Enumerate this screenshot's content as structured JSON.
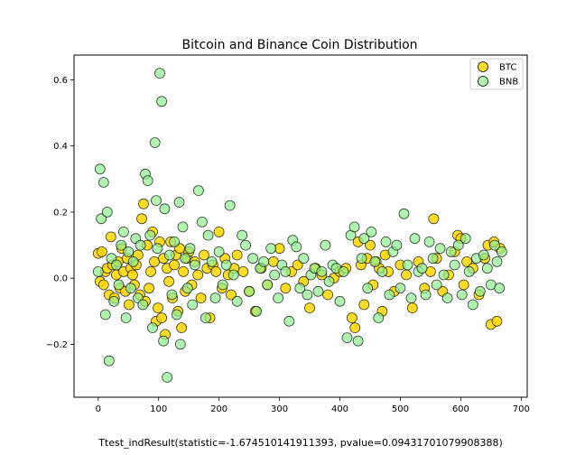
{
  "chart_data": {
    "type": "scatter",
    "title": "Bitcoin and Binance Coin Distribution",
    "xlabel": "",
    "ylabel": "",
    "xlim": [
      -40,
      710
    ],
    "ylim": [
      -0.36,
      0.675
    ],
    "xticks": [
      0,
      100,
      200,
      300,
      400,
      500,
      600,
      700
    ],
    "yticks": [
      -0.2,
      0.0,
      0.2,
      0.4,
      0.6
    ],
    "ytick_labels": [
      "−0.2",
      "0.0",
      "0.2",
      "0.4",
      "0.6"
    ],
    "grid": false,
    "legend_position": "top-right",
    "caption": "Ttest_indResult(statistic=-1.674510141911393, pvalue=0.09431701079908388)",
    "series": [
      {
        "name": "BTC",
        "color": "#ffd700",
        "edge_color": "#000000",
        "x": [
          0,
          3,
          6,
          9,
          12,
          15,
          18,
          21,
          24,
          27,
          30,
          33,
          36,
          39,
          42,
          45,
          48,
          51,
          54,
          57,
          60,
          63,
          66,
          69,
          72,
          75,
          78,
          81,
          84,
          87,
          90,
          93,
          96,
          99,
          102,
          105,
          108,
          111,
          114,
          117,
          120,
          123,
          126,
          129,
          132,
          135,
          138,
          141,
          144,
          147,
          150,
          155,
          160,
          165,
          170,
          175,
          180,
          185,
          190,
          195,
          200,
          205,
          210,
          215,
          220,
          225,
          230,
          240,
          250,
          260,
          270,
          280,
          290,
          300,
          310,
          320,
          330,
          340,
          350,
          360,
          370,
          380,
          390,
          400,
          410,
          420,
          425,
          430,
          435,
          440,
          445,
          450,
          455,
          460,
          465,
          470,
          475,
          480,
          490,
          500,
          510,
          520,
          530,
          540,
          550,
          555,
          560,
          570,
          580,
          590,
          595,
          600,
          605,
          610,
          620,
          630,
          640,
          645,
          650,
          655,
          660,
          665
        ],
        "y": [
          0.075,
          -0.01,
          0.08,
          -0.02,
          0.02,
          0.03,
          -0.05,
          0.125,
          0.04,
          -0.06,
          0.01,
          0.05,
          -0.03,
          0.09,
          0.02,
          -0.04,
          0.06,
          -0.08,
          0.03,
          0.01,
          -0.02,
          0.04,
          0.07,
          -0.05,
          0.18,
          0.225,
          -0.07,
          0.1,
          -0.03,
          0.02,
          0.14,
          0.05,
          -0.13,
          -0.09,
          0.11,
          -0.12,
          0.06,
          -0.17,
          0.03,
          -0.01,
          0.11,
          -0.06,
          0.04,
          0.07,
          -0.1,
          0.09,
          -0.15,
          0.02,
          -0.04,
          0.06,
          0.08,
          -0.02,
          0.05,
          0.01,
          -0.06,
          0.07,
          0.03,
          -0.12,
          0.04,
          0.02,
          0.14,
          -0.03,
          0.06,
          0.01,
          -0.05,
          0.03,
          0.07,
          0.02,
          -0.04,
          -0.1,
          0.03,
          -0.02,
          0.05,
          0.09,
          -0.03,
          0.02,
          0.04,
          -0.01,
          -0.09,
          0.03,
          0.01,
          -0.05,
          0.0,
          0.02,
          0.03,
          -0.12,
          -0.15,
          0.11,
          0.04,
          -0.08,
          0.06,
          0.1,
          -0.02,
          0.05,
          0.03,
          -0.1,
          0.07,
          0.02,
          -0.04,
          0.04,
          0.01,
          -0.09,
          0.05,
          -0.03,
          0.02,
          0.18,
          0.06,
          -0.04,
          0.01,
          0.08,
          0.13,
          0.12,
          -0.02,
          0.05,
          0.03,
          -0.05,
          0.06,
          0.1,
          -0.14,
          0.11,
          -0.13,
          0.09
        ]
      },
      {
        "name": "BNB",
        "color": "#90ee90",
        "edge_color": "#000000",
        "x": [
          0,
          3,
          5,
          9,
          12,
          15,
          18,
          22,
          26,
          30,
          34,
          38,
          42,
          46,
          50,
          54,
          58,
          62,
          66,
          70,
          74,
          78,
          82,
          86,
          90,
          94,
          96,
          98,
          102,
          105,
          108,
          110,
          114,
          118,
          122,
          126,
          130,
          134,
          136,
          140,
          144,
          148,
          152,
          156,
          160,
          166,
          172,
          178,
          182,
          188,
          194,
          200,
          206,
          212,
          218,
          224,
          230,
          238,
          244,
          250,
          256,
          262,
          268,
          274,
          280,
          286,
          292,
          298,
          304,
          310,
          316,
          322,
          328,
          334,
          340,
          346,
          352,
          358,
          364,
          370,
          376,
          382,
          388,
          394,
          400,
          406,
          412,
          418,
          424,
          430,
          436,
          440,
          446,
          452,
          458,
          464,
          470,
          476,
          482,
          488,
          494,
          500,
          506,
          512,
          518,
          524,
          530,
          536,
          542,
          548,
          554,
          560,
          566,
          572,
          578,
          584,
          590,
          596,
          602,
          608,
          614,
          620,
          626,
          632,
          638,
          644,
          650,
          656,
          660,
          664,
          668
        ],
        "y": [
          0.02,
          0.33,
          0.18,
          0.29,
          -0.11,
          0.2,
          -0.25,
          0.06,
          -0.07,
          0.04,
          -0.02,
          0.1,
          0.14,
          -0.12,
          0.08,
          -0.03,
          0.05,
          0.12,
          -0.06,
          0.1,
          -0.08,
          0.315,
          0.295,
          0.13,
          -0.15,
          0.41,
          0.235,
          0.09,
          0.62,
          0.535,
          -0.19,
          0.21,
          -0.3,
          0.07,
          -0.05,
          0.11,
          -0.11,
          0.23,
          -0.2,
          0.155,
          0.06,
          -0.03,
          0.09,
          -0.08,
          0.04,
          0.265,
          0.17,
          -0.12,
          0.13,
          0.05,
          -0.06,
          0.08,
          -0.02,
          0.04,
          0.22,
          0.01,
          -0.07,
          0.13,
          0.1,
          -0.04,
          0.06,
          -0.1,
          0.03,
          0.05,
          -0.02,
          0.09,
          0.01,
          -0.06,
          0.04,
          0.02,
          -0.13,
          0.115,
          0.095,
          -0.03,
          0.06,
          -0.05,
          0.01,
          0.03,
          -0.04,
          0.02,
          0.1,
          -0.01,
          0.04,
          0.03,
          -0.07,
          0.02,
          -0.18,
          0.13,
          0.155,
          -0.19,
          0.06,
          0.12,
          -0.03,
          0.14,
          0.05,
          -0.12,
          0.02,
          0.11,
          -0.05,
          0.08,
          0.1,
          -0.03,
          0.195,
          0.04,
          -0.06,
          0.12,
          0.02,
          0.03,
          -0.05,
          0.11,
          0.06,
          -0.02,
          0.09,
          0.01,
          -0.06,
          0.08,
          0.04,
          0.1,
          -0.05,
          0.12,
          0.02,
          -0.08,
          0.06,
          -0.04,
          0.07,
          0.03,
          -0.02,
          0.1,
          0.05,
          -0.03,
          0.08
        ]
      }
    ]
  }
}
